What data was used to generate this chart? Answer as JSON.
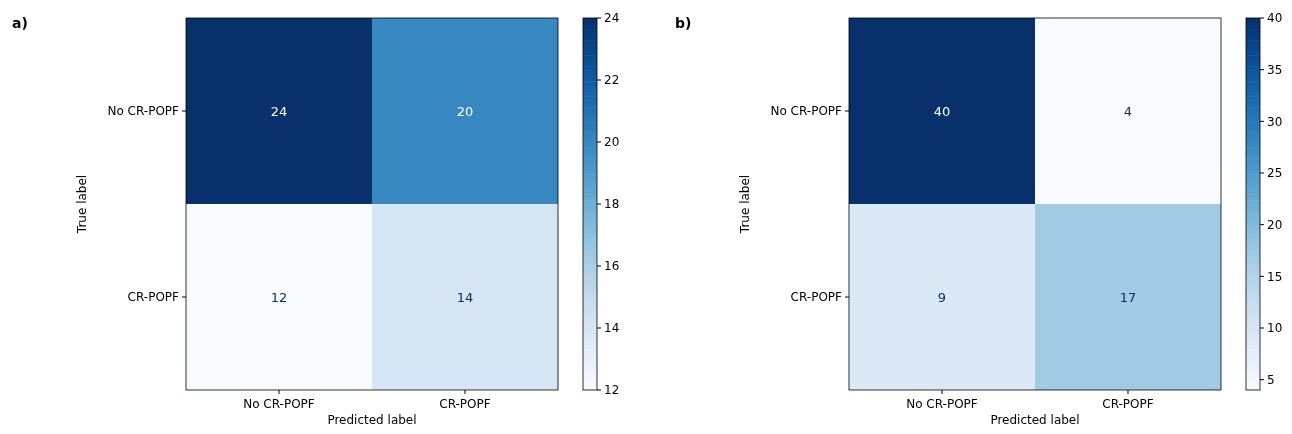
{
  "chart_data": [
    {
      "type": "heatmap",
      "title": "a)",
      "xlabel": "Predicted label",
      "ylabel": "True label",
      "categories": [
        "No CR-POPF",
        "CR-POPF"
      ],
      "y_categories": [
        "No CR-POPF",
        "CR-POPF"
      ],
      "cells": [
        [
          24,
          20
        ],
        [
          12,
          14
        ]
      ],
      "clim": [
        12,
        24
      ],
      "cticks": [
        12,
        14,
        16,
        18,
        20,
        22,
        24
      ],
      "data_labels": true
    },
    {
      "type": "heatmap",
      "title": "b)",
      "xlabel": "Predicted label",
      "ylabel": "True label",
      "categories": [
        "No CR-POPF",
        "CR-POPF"
      ],
      "y_categories": [
        "No CR-POPF",
        "CR-POPF"
      ],
      "cells": [
        [
          40,
          4
        ],
        [
          9,
          17
        ]
      ],
      "clim": [
        4,
        40
      ],
      "cticks": [
        5,
        10,
        15,
        20,
        25,
        30,
        35,
        40
      ],
      "data_labels": true
    }
  ]
}
